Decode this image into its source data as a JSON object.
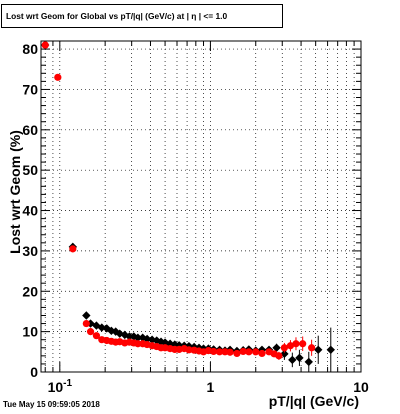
{
  "chart_data": {
    "type": "scatter",
    "title": "Lost wrt Geom for Global vs pT/|q| (GeV/c) at | η | <= 1.0",
    "xlabel": "pT/|q| (GeV/c)",
    "ylabel": "Lost wrt Geom (%)",
    "xscale": "log",
    "xlim": [
      0.075,
      10
    ],
    "ylim": [
      0,
      82
    ],
    "grid": true,
    "x_ticks": [
      {
        "value": 0.1,
        "base": "10",
        "exp": "-1"
      },
      {
        "value": 1,
        "label": "1"
      },
      {
        "value": 10,
        "label": "10"
      }
    ],
    "y_ticks": [
      0,
      10,
      20,
      30,
      40,
      50,
      60,
      70,
      80
    ],
    "series": [
      {
        "color": "#000000",
        "marker": "diamond",
        "points": [
          {
            "x": 0.08,
            "y": 81,
            "ex": 0.003
          },
          {
            "x": 0.122,
            "y": 31,
            "ex": 0.006
          },
          {
            "x": 0.15,
            "y": 14,
            "ex": 0.004
          },
          {
            "x": 0.16,
            "y": 12,
            "ex": 0.004
          },
          {
            "x": 0.175,
            "y": 11.5
          },
          {
            "x": 0.19,
            "y": 11
          },
          {
            "x": 0.205,
            "y": 10.8
          },
          {
            "x": 0.22,
            "y": 10.2
          },
          {
            "x": 0.235,
            "y": 10
          },
          {
            "x": 0.25,
            "y": 9.5
          },
          {
            "x": 0.27,
            "y": 9.2
          },
          {
            "x": 0.29,
            "y": 8.8
          },
          {
            "x": 0.31,
            "y": 8.8
          },
          {
            "x": 0.33,
            "y": 8.5
          },
          {
            "x": 0.355,
            "y": 8.5
          },
          {
            "x": 0.38,
            "y": 8.2
          },
          {
            "x": 0.41,
            "y": 8
          },
          {
            "x": 0.44,
            "y": 7.8
          },
          {
            "x": 0.47,
            "y": 7.5
          },
          {
            "x": 0.5,
            "y": 7.3
          },
          {
            "x": 0.54,
            "y": 7
          },
          {
            "x": 0.58,
            "y": 6.8
          },
          {
            "x": 0.62,
            "y": 6.6
          },
          {
            "x": 0.67,
            "y": 6.5
          },
          {
            "x": 0.72,
            "y": 6.4
          },
          {
            "x": 0.78,
            "y": 6.2
          },
          {
            "x": 0.84,
            "y": 6
          },
          {
            "x": 0.9,
            "y": 5.8
          },
          {
            "x": 0.97,
            "y": 5.8
          },
          {
            "x": 1.05,
            "y": 5.6
          },
          {
            "x": 1.15,
            "y": 5.5
          },
          {
            "x": 1.25,
            "y": 5.3
          },
          {
            "x": 1.35,
            "y": 5.5
          },
          {
            "x": 1.5,
            "y": 5.2
          },
          {
            "x": 1.65,
            "y": 5.4
          },
          {
            "x": 1.8,
            "y": 5.6
          },
          {
            "x": 2.0,
            "y": 5.3
          },
          {
            "x": 2.2,
            "y": 5.5
          },
          {
            "x": 2.45,
            "y": 5.5
          },
          {
            "x": 2.75,
            "y": 6,
            "ey": 1.0
          },
          {
            "x": 3.1,
            "y": 4.5,
            "ey": 1.5
          },
          {
            "x": 3.5,
            "y": 3,
            "ey": 1.8
          },
          {
            "x": 3.9,
            "y": 3.5,
            "ey": 2.0
          },
          {
            "x": 4.5,
            "y": 2.5,
            "ey": 2.5
          },
          {
            "x": 5.2,
            "y": 5.5,
            "ey": 3.5
          },
          {
            "x": 6.3,
            "y": 5.5,
            "ey": 5.5
          }
        ]
      },
      {
        "color": "#ff0000",
        "marker": "circle",
        "points": [
          {
            "x": 0.08,
            "y": 81,
            "ex": 0.003
          },
          {
            "x": 0.097,
            "y": 73,
            "ex": 0.005
          },
          {
            "x": 0.122,
            "y": 30.5,
            "ex": 0.006
          },
          {
            "x": 0.15,
            "y": 12,
            "ex": 0.004
          },
          {
            "x": 0.16,
            "y": 10
          },
          {
            "x": 0.175,
            "y": 9
          },
          {
            "x": 0.19,
            "y": 8
          },
          {
            "x": 0.205,
            "y": 7.8
          },
          {
            "x": 0.22,
            "y": 7.6
          },
          {
            "x": 0.235,
            "y": 7.4
          },
          {
            "x": 0.25,
            "y": 7.5
          },
          {
            "x": 0.27,
            "y": 7.2
          },
          {
            "x": 0.29,
            "y": 7.4
          },
          {
            "x": 0.31,
            "y": 7.2
          },
          {
            "x": 0.33,
            "y": 7
          },
          {
            "x": 0.355,
            "y": 7
          },
          {
            "x": 0.38,
            "y": 6.8
          },
          {
            "x": 0.41,
            "y": 6.5
          },
          {
            "x": 0.44,
            "y": 6.3
          },
          {
            "x": 0.47,
            "y": 6
          },
          {
            "x": 0.5,
            "y": 6
          },
          {
            "x": 0.54,
            "y": 5.8
          },
          {
            "x": 0.58,
            "y": 5.6
          },
          {
            "x": 0.62,
            "y": 5.6
          },
          {
            "x": 0.67,
            "y": 5.8
          },
          {
            "x": 0.72,
            "y": 5.5
          },
          {
            "x": 0.78,
            "y": 5.4
          },
          {
            "x": 0.84,
            "y": 5.2
          },
          {
            "x": 0.9,
            "y": 5
          },
          {
            "x": 0.97,
            "y": 5.3
          },
          {
            "x": 1.05,
            "y": 5.1
          },
          {
            "x": 1.15,
            "y": 5
          },
          {
            "x": 1.25,
            "y": 5
          },
          {
            "x": 1.35,
            "y": 4.9
          },
          {
            "x": 1.5,
            "y": 4.6
          },
          {
            "x": 1.65,
            "y": 5.1
          },
          {
            "x": 1.8,
            "y": 5
          },
          {
            "x": 2.0,
            "y": 5
          },
          {
            "x": 2.2,
            "y": 4.6
          },
          {
            "x": 2.45,
            "y": 5
          },
          {
            "x": 2.65,
            "y": 4.5
          },
          {
            "x": 2.85,
            "y": 4,
            "ey": 1.0
          },
          {
            "x": 3.1,
            "y": 6,
            "ey": 1.2
          },
          {
            "x": 3.4,
            "y": 6.5,
            "ey": 1.4
          },
          {
            "x": 3.7,
            "y": 7,
            "ey": 1.6
          },
          {
            "x": 4.1,
            "y": 7,
            "ey": 1.8
          },
          {
            "x": 4.7,
            "y": 6,
            "ey": 2.0
          }
        ]
      }
    ]
  },
  "footer": {
    "timestamp": "Tue May 15 09:59:05 2018"
  }
}
